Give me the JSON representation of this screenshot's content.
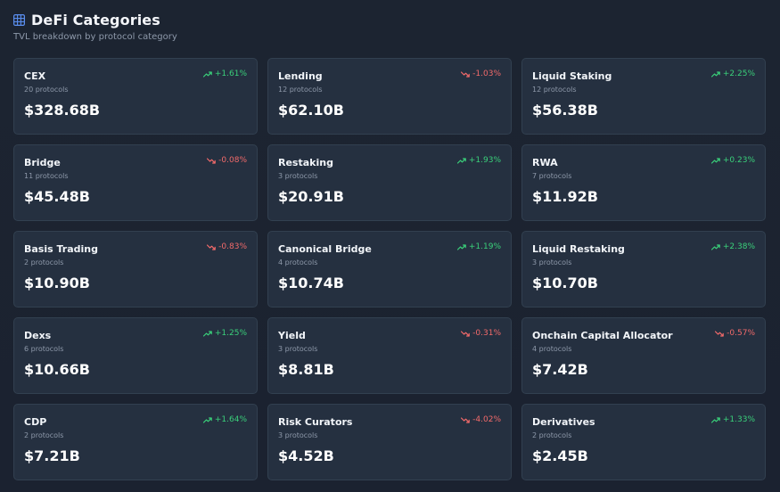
{
  "header": {
    "title": "DeFi Categories",
    "subtitle": "TVL breakdown by protocol category",
    "icon": "grid-icon",
    "accent": "#5b8ff0"
  },
  "colors": {
    "up": "#3ad07a",
    "down": "#f26a6a"
  },
  "categories": [
    {
      "name": "CEX",
      "protocols": "20 protocols",
      "tvl": "$328.68B",
      "change": "+1.61%",
      "direction": "up"
    },
    {
      "name": "Lending",
      "protocols": "12 protocols",
      "tvl": "$62.10B",
      "change": "-1.03%",
      "direction": "down"
    },
    {
      "name": "Liquid Staking",
      "protocols": "12 protocols",
      "tvl": "$56.38B",
      "change": "+2.25%",
      "direction": "up"
    },
    {
      "name": "Bridge",
      "protocols": "11 protocols",
      "tvl": "$45.48B",
      "change": "-0.08%",
      "direction": "down"
    },
    {
      "name": "Restaking",
      "protocols": "3 protocols",
      "tvl": "$20.91B",
      "change": "+1.93%",
      "direction": "up"
    },
    {
      "name": "RWA",
      "protocols": "7 protocols",
      "tvl": "$11.92B",
      "change": "+0.23%",
      "direction": "up"
    },
    {
      "name": "Basis Trading",
      "protocols": "2 protocols",
      "tvl": "$10.90B",
      "change": "-0.83%",
      "direction": "down"
    },
    {
      "name": "Canonical Bridge",
      "protocols": "4 protocols",
      "tvl": "$10.74B",
      "change": "+1.19%",
      "direction": "up"
    },
    {
      "name": "Liquid Restaking",
      "protocols": "3 protocols",
      "tvl": "$10.70B",
      "change": "+2.38%",
      "direction": "up"
    },
    {
      "name": "Dexs",
      "protocols": "6 protocols",
      "tvl": "$10.66B",
      "change": "+1.25%",
      "direction": "up"
    },
    {
      "name": "Yield",
      "protocols": "3 protocols",
      "tvl": "$8.81B",
      "change": "-0.31%",
      "direction": "down"
    },
    {
      "name": "Onchain Capital Allocator",
      "protocols": "4 protocols",
      "tvl": "$7.42B",
      "change": "-0.57%",
      "direction": "down"
    },
    {
      "name": "CDP",
      "protocols": "2 protocols",
      "tvl": "$7.21B",
      "change": "+1.64%",
      "direction": "up"
    },
    {
      "name": "Risk Curators",
      "protocols": "3 protocols",
      "tvl": "$4.52B",
      "change": "-4.02%",
      "direction": "down"
    },
    {
      "name": "Derivatives",
      "protocols": "2 protocols",
      "tvl": "$2.45B",
      "change": "+1.33%",
      "direction": "up"
    }
  ]
}
